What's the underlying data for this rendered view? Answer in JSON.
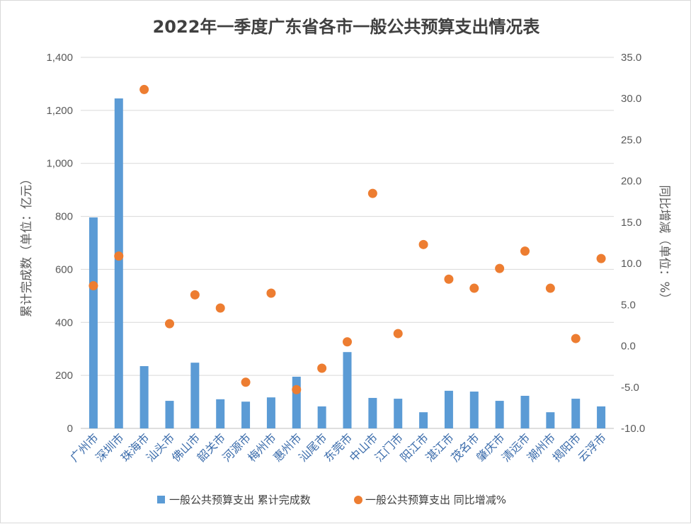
{
  "chart_data": {
    "type": "bar+scatter",
    "title": "2022年一季度广东省各市一般公共预算支出情况表",
    "ylabel": "累计完成数（单位：亿元）",
    "y2label": "同比增减（单位：%）",
    "ylim": [
      0,
      1400
    ],
    "y2lim": [
      -10,
      35
    ],
    "yticks": [
      "0",
      "200",
      "400",
      "600",
      "800",
      "1,000",
      "1,200",
      "1,400"
    ],
    "y2ticks": [
      "-10.0",
      "-5.0",
      "0.0",
      "5.0",
      "10.0",
      "15.0",
      "20.0",
      "25.0",
      "30.0",
      "35.0"
    ],
    "categories": [
      "广州市",
      "深圳市",
      "珠海市",
      "汕头市",
      "佛山市",
      "韶关市",
      "河源市",
      "梅州市",
      "惠州市",
      "汕尾市",
      "东莞市",
      "中山市",
      "江门市",
      "阳江市",
      "湛江市",
      "茂名市",
      "肇庆市",
      "清远市",
      "潮州市",
      "揭阳市",
      "云浮市"
    ],
    "series": [
      {
        "name": "一般公共预算支出 累计完成数",
        "type": "bar",
        "axis": "left",
        "color": "#5b9bd5",
        "values": [
          796,
          1245,
          235,
          104,
          248,
          110,
          101,
          117,
          195,
          83,
          288,
          115,
          112,
          61,
          142,
          139,
          104,
          123,
          61,
          112,
          83
        ]
      },
      {
        "name": "一般公共预算支出 同比增减%",
        "type": "scatter",
        "axis": "right",
        "color": "#ed7d31",
        "values": [
          7.3,
          10.9,
          31.1,
          2.7,
          6.2,
          4.6,
          -4.4,
          6.4,
          -5.3,
          -2.7,
          0.5,
          18.5,
          1.5,
          12.3,
          8.1,
          7.0,
          9.4,
          11.5,
          7.0,
          0.9,
          10.6
        ]
      }
    ],
    "grid": true,
    "legend": "bottom"
  }
}
